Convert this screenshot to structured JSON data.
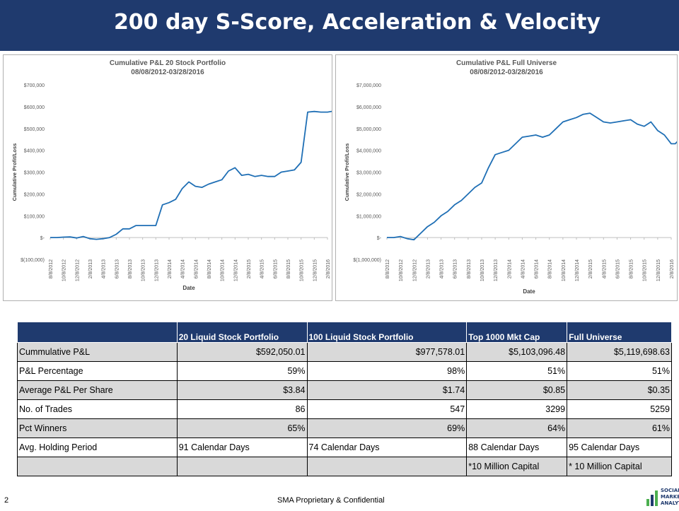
{
  "page_title": "200 day S-Score, Acceleration & Velocity",
  "footer": {
    "page_number": "2",
    "confidential": "SMA Proprietary & Confidential"
  },
  "logo": {
    "line1": "SOCIAL",
    "line2": "MARKET",
    "line3": "ANALYTICS"
  },
  "colors": {
    "title_bar": "#1f3a6e",
    "line": "#1f6fb5",
    "table_header": "#1f3a6e",
    "row_shade": "#d9d9d9"
  },
  "chart_data": [
    {
      "type": "line",
      "title": "Cumulative P&L 20 Stock Portfolio",
      "subtitle": "08/08/2012-03/28/2016",
      "xlabel": "Date",
      "ylabel": "Cumulative Profit/Loss",
      "ylim": [
        -100000,
        700000
      ],
      "y_ticks": [
        -100000,
        0,
        100000,
        200000,
        300000,
        400000,
        500000,
        600000,
        700000
      ],
      "y_tick_labels": [
        "$(100,000)",
        "$-",
        "$100,000",
        "$200,000",
        "$300,000",
        "$400,000",
        "$500,000",
        "$600,000",
        "$700,000"
      ],
      "x_tick_labels": [
        "8/8/2012",
        "10/8/2012",
        "12/8/2012",
        "2/8/2013",
        "4/8/2013",
        "6/8/2013",
        "8/8/2013",
        "10/8/2013",
        "12/8/2013",
        "2/8/2014",
        "4/8/2014",
        "6/8/2014",
        "8/8/2014",
        "10/8/2014",
        "12/8/2014",
        "2/8/2015",
        "4/8/2015",
        "6/8/2015",
        "8/8/2015",
        "10/8/2015",
        "12/8/2015",
        "2/8/2016"
      ],
      "grid": false,
      "series": [
        {
          "x": [
            0,
            0.5,
            1,
            1.5,
            2,
            2.5,
            3,
            3.5,
            4,
            4.5,
            5,
            5.5,
            6,
            6.5,
            7,
            7.5,
            8,
            8.5,
            9,
            9.5,
            10,
            10.5,
            11,
            11.5,
            12,
            12.5,
            13,
            13.5,
            14,
            14.5,
            15,
            15.5,
            16,
            16.5,
            17,
            17.5,
            18,
            18.5,
            19,
            19.5,
            20,
            20.5,
            21,
            21.5,
            22,
            22.3
          ],
          "values": [
            0,
            0,
            2000,
            3000,
            -2000,
            5000,
            -5000,
            -8000,
            -5000,
            0,
            15000,
            40000,
            40000,
            55000,
            55000,
            55000,
            55000,
            150000,
            160000,
            175000,
            225000,
            255000,
            235000,
            230000,
            245000,
            255000,
            265000,
            305000,
            320000,
            285000,
            290000,
            280000,
            285000,
            280000,
            280000,
            300000,
            305000,
            310000,
            345000,
            575000,
            578000,
            575000,
            575000,
            580000,
            590000,
            592050
          ]
        }
      ]
    },
    {
      "type": "line",
      "title": "Cumulative P&L Full Universe",
      "subtitle": "08/08/2012-03/28/2016",
      "xlabel": "Date",
      "ylabel": "Cumulative Profit/Loss",
      "ylim": [
        -1000000,
        7000000
      ],
      "y_ticks": [
        -1000000,
        0,
        1000000,
        2000000,
        3000000,
        4000000,
        5000000,
        6000000,
        7000000
      ],
      "y_tick_labels": [
        "$(1,000,000)",
        "$-",
        "$1,000,000",
        "$2,000,000",
        "$3,000,000",
        "$4,000,000",
        "$5,000,000",
        "$6,000,000",
        "$7,000,000"
      ],
      "x_tick_labels": [
        "8/8/2012",
        "10/8/2012",
        "12/8/2012",
        "2/8/2013",
        "4/8/2013",
        "6/8/2013",
        "8/8/2013",
        "10/8/2013",
        "12/8/2013",
        "2/8/2014",
        "4/8/2014",
        "6/8/2014",
        "8/8/2014",
        "10/8/2014",
        "12/8/2014",
        "2/8/2015",
        "4/8/2015",
        "6/8/2015",
        "8/8/2015",
        "10/8/2015",
        "12/8/2015",
        "2/8/2016"
      ],
      "grid": false,
      "series": [
        {
          "x": [
            0,
            0.5,
            1,
            1.5,
            2,
            2.5,
            3,
            3.5,
            4,
            4.5,
            5,
            5.5,
            6,
            6.5,
            7,
            7.5,
            8,
            8.5,
            9,
            9.5,
            10,
            10.5,
            11,
            11.5,
            12,
            12.5,
            13,
            13.5,
            14,
            14.5,
            15,
            15.5,
            16,
            16.5,
            17,
            17.5,
            18,
            18.5,
            19,
            19.5,
            20,
            20.5,
            21,
            21.3,
            21.6,
            22,
            22.3
          ],
          "values": [
            0,
            0,
            50000,
            -50000,
            -100000,
            200000,
            500000,
            700000,
            1000000,
            1200000,
            1500000,
            1700000,
            2000000,
            2300000,
            2500000,
            3200000,
            3800000,
            3900000,
            4000000,
            4300000,
            4600000,
            4650000,
            4700000,
            4600000,
            4700000,
            5000000,
            5300000,
            5400000,
            5500000,
            5650000,
            5700000,
            5500000,
            5300000,
            5250000,
            5300000,
            5350000,
            5400000,
            5200000,
            5100000,
            5300000,
            4900000,
            4700000,
            4300000,
            4300000,
            4500000,
            4800000,
            5119698
          ]
        }
      ]
    }
  ],
  "table": {
    "headers": [
      "",
      "20 Liquid Stock Portfolio",
      "100 Liquid Stock Portfolio",
      "Top 1000  Mkt Cap",
      "Full Universe"
    ],
    "rows": [
      [
        "Cummulative P&L",
        "$592,050.01",
        "$977,578.01",
        "$5,103,096.48",
        "$5,119,698.63"
      ],
      [
        "P&L Percentage",
        "59%",
        "98%",
        "51%",
        "51%"
      ],
      [
        "Average P&L Per Share",
        "$3.84",
        "$1.74",
        "$0.85",
        "$0.35"
      ],
      [
        "No. of Trades",
        "86",
        "547",
        "3299",
        "5259"
      ],
      [
        "Pct Winners",
        "65%",
        "69%",
        "64%",
        "61%"
      ],
      [
        "Avg. Holding Period",
        "91 Calendar Days",
        "74 Calendar Days",
        "88 Calendar Days",
        "95 Calendar Days"
      ],
      [
        "",
        "",
        "",
        "*10  Million Capital",
        "* 10 Million Capital"
      ]
    ]
  }
}
